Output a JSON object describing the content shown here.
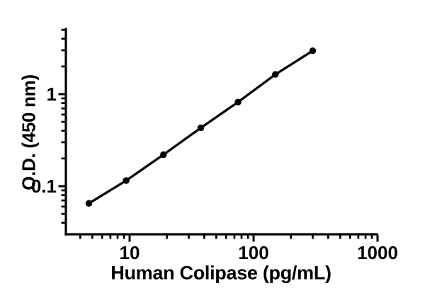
{
  "figure": {
    "background": "#ffffff",
    "foreground": "#000000"
  },
  "chart_data": {
    "type": "line",
    "title": "",
    "xlabel": "Human Colipase (pg/mL)",
    "ylabel": "O.D. (450 nm)",
    "xscale": "log",
    "yscale": "log",
    "xlim": [
      3,
      1000
    ],
    "ylim": [
      0.03,
      5
    ],
    "grid": false,
    "legend": "none",
    "x_major_ticks": [
      10,
      100,
      1000
    ],
    "x_major_labels": [
      "10",
      "100",
      "1000"
    ],
    "x_minor_ticks": [
      4,
      5,
      6,
      7,
      8,
      9,
      20,
      30,
      40,
      50,
      60,
      70,
      80,
      90,
      200,
      300,
      400,
      500,
      600,
      700,
      800,
      900
    ],
    "y_major_ticks": [
      1,
      0.1
    ],
    "y_major_labels": [
      "1",
      "0.1"
    ],
    "y_minor_ticks": [
      0.04,
      0.05,
      0.06,
      0.07,
      0.08,
      0.09,
      0.2,
      0.3,
      0.4,
      0.5,
      0.6,
      0.7,
      0.8,
      0.9,
      2,
      3,
      4,
      5
    ],
    "x": [
      4.69,
      9.38,
      18.75,
      37.5,
      75,
      150,
      300
    ],
    "y": [
      0.065,
      0.115,
      0.22,
      0.43,
      0.82,
      1.64,
      2.96
    ],
    "marker": "filled-circle",
    "line_color": "#000000",
    "marker_color": "#000000"
  }
}
